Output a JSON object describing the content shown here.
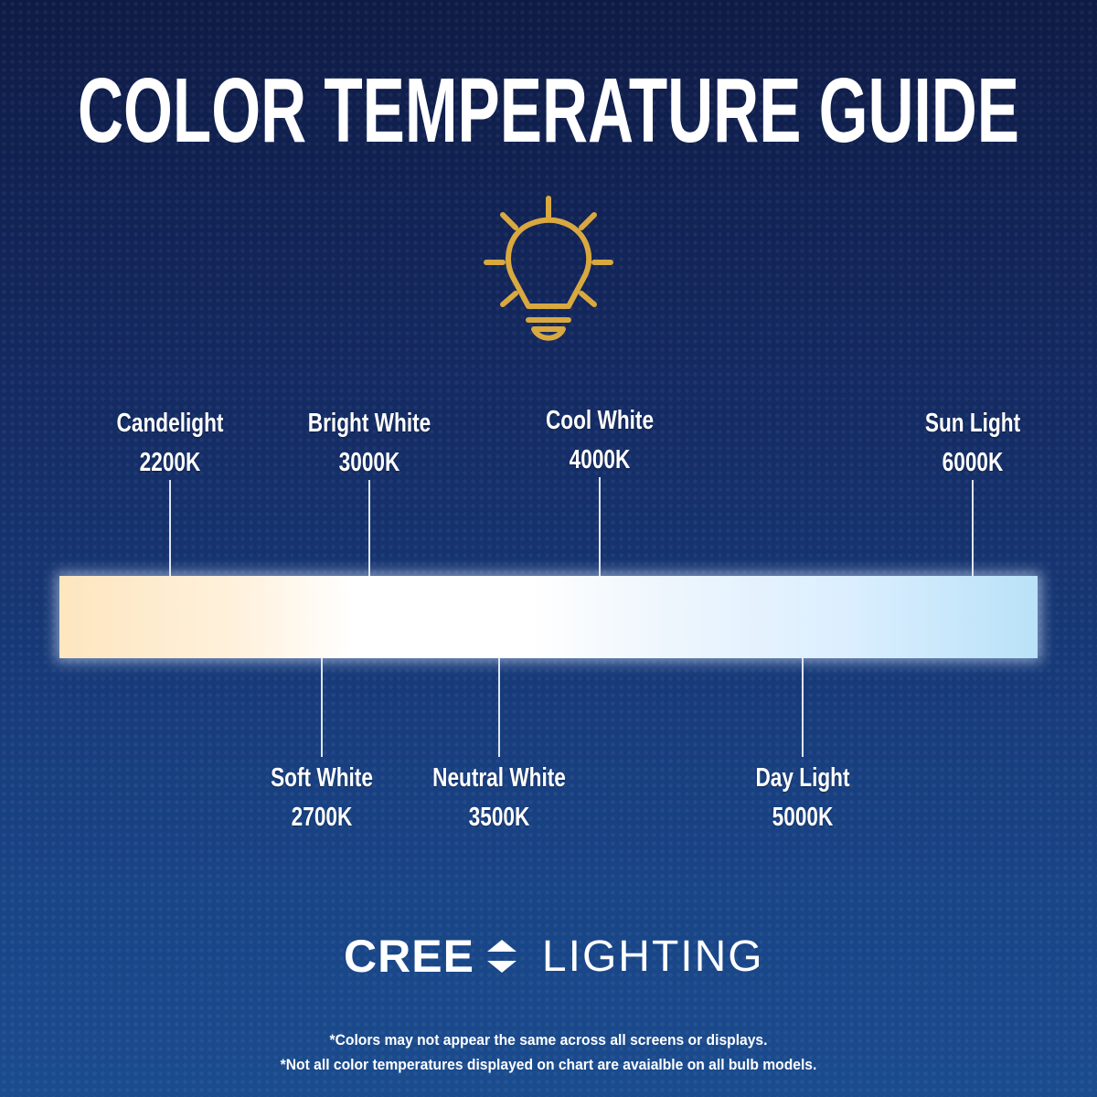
{
  "title": "COLOR TEMPERATURE GUIDE",
  "icon": "lightbulb-icon",
  "accent_color": "#d9a93f",
  "scale_above": [
    {
      "name": "Candelight",
      "kelvin": "2200K"
    },
    {
      "name": "Bright White",
      "kelvin": "3000K"
    },
    {
      "name": "Cool White",
      "kelvin": "4000K"
    },
    {
      "name": "Sun Light",
      "kelvin": "6000K"
    }
  ],
  "scale_below": [
    {
      "name": "Soft White",
      "kelvin": "2700K"
    },
    {
      "name": "Neutral White",
      "kelvin": "3500K"
    },
    {
      "name": "Day Light",
      "kelvin": "5000K"
    }
  ],
  "logo": {
    "brand": "CREE",
    "product": "LIGHTING"
  },
  "notes": [
    "*Colors may not appear the same across all screens or displays.",
    "*Not all color temperatures displayed on chart are avaialble on all bulb models."
  ]
}
